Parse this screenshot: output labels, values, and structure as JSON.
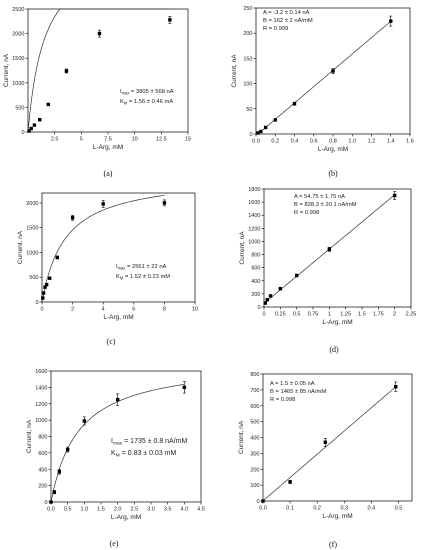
{
  "chart_data": [
    {
      "type": "scatter",
      "panel": "a",
      "caption": "(a)",
      "xlabel": "L-Arg, mM",
      "ylabel": "Current, nA",
      "xlim": [
        0,
        15
      ],
      "ylim": [
        0,
        2500
      ],
      "xticks": [
        2.5,
        5,
        7.5,
        10,
        12.5,
        15
      ],
      "xtick_labels": [
        "2.5",
        "5",
        "7.5",
        "10",
        "12.5",
        "15"
      ],
      "yticks": [
        0,
        500,
        1000,
        1500,
        2000,
        2500
      ],
      "ytick_labels": [
        "0",
        "500",
        "1000",
        "1500",
        "2000",
        "2500"
      ],
      "x": [
        0.1,
        0.3,
        0.6,
        1.1,
        1.9,
        3.6,
        6.7,
        13.3
      ],
      "y": [
        20,
        70,
        140,
        250,
        560,
        1240,
        2000,
        2280
      ],
      "yerr": [
        10,
        10,
        15,
        20,
        20,
        40,
        70,
        70
      ],
      "fit": {
        "model": "michaelis-menten",
        "Imax": 3805,
        "Km": 1.56
      },
      "annotations": [
        {
          "main": "I",
          "sub": "max",
          "rest": " = 3805 ± 568 nA"
        },
        {
          "main": "K",
          "sub": "M",
          "rest": " = 1.56 ± 0.46 mA"
        }
      ]
    },
    {
      "type": "scatter",
      "panel": "b",
      "caption": "(b)",
      "xlabel": "L-Arg, mM",
      "ylabel": "Current, nA",
      "xlim": [
        0,
        1.6
      ],
      "ylim": [
        0,
        250
      ],
      "xticks": [
        0.0,
        0.2,
        0.4,
        0.6,
        0.8,
        1.0,
        1.2,
        1.4,
        1.6
      ],
      "xtick_labels": [
        "0.0",
        "0.2",
        "0.4",
        "0.6",
        "0.8",
        "1.0",
        "1.2",
        "1.4",
        "1.6"
      ],
      "yticks": [
        0,
        50,
        100,
        150,
        200,
        250
      ],
      "ytick_labels": [
        "0",
        "50",
        "100",
        "150",
        "200",
        "250"
      ],
      "x": [
        0.02,
        0.05,
        0.1,
        0.2,
        0.4,
        0.8,
        1.4
      ],
      "y": [
        2,
        5,
        13,
        28,
        60,
        125,
        224
      ],
      "yerr": [
        2,
        2,
        2,
        2,
        3,
        5,
        10
      ],
      "fit": {
        "model": "linear",
        "A": -3.2,
        "B": 162
      },
      "annotations": [
        {
          "text": "A = -3.2 ± 0.14 nA"
        },
        {
          "text": "B = 162 ± 2 nA/mM"
        },
        {
          "text": "R = 0.999"
        }
      ]
    },
    {
      "type": "scatter",
      "panel": "c",
      "caption": "(c)",
      "xlabel": "L-Arg, mM",
      "ylabel": "Current, nA",
      "xlim": [
        0,
        10
      ],
      "ylim": [
        0,
        2200
      ],
      "xticks": [
        0,
        2,
        4,
        6,
        8,
        10
      ],
      "xtick_labels": [
        "0",
        "2",
        "4",
        "6",
        "8",
        "10"
      ],
      "yticks": [
        0,
        500,
        1000,
        1500,
        2000
      ],
      "ytick_labels": [
        "0",
        "500",
        "1000",
        "1500",
        "2000"
      ],
      "x": [
        0.05,
        0.1,
        0.2,
        0.3,
        0.5,
        1.0,
        2.0,
        4.0,
        8.0
      ],
      "y": [
        80,
        180,
        300,
        350,
        480,
        900,
        1700,
        1980,
        2000
      ],
      "yerr": [
        10,
        10,
        15,
        15,
        20,
        30,
        50,
        70,
        60
      ],
      "fit": {
        "model": "michaelis-menten",
        "Imax": 2561,
        "Km": 1.52
      },
      "annotations": [
        {
          "main": "I",
          "sub": "max",
          "rest": " = 2561 ± 22 nA"
        },
        {
          "main": "K",
          "sub": "M",
          "rest": " = 1.52 ± 0.23 mM"
        }
      ]
    },
    {
      "type": "scatter",
      "panel": "d",
      "caption": "(d)",
      "xlabel": "L-Arg, mM",
      "ylabel": "Current, nA",
      "xlim": [
        0,
        2.25
      ],
      "ylim": [
        0,
        1800
      ],
      "xticks": [
        0,
        0.25,
        0.5,
        0.75,
        1.0,
        1.25,
        1.5,
        1.75,
        2.0,
        2.25
      ],
      "xtick_labels": [
        "0",
        "0.25",
        "0.5",
        "0.75",
        "1",
        "1.25",
        "1.5",
        "1.75",
        "2",
        "2.25"
      ],
      "yticks": [
        0,
        200,
        400,
        600,
        800,
        1000,
        1200,
        1400,
        1600,
        1800
      ],
      "ytick_labels": [
        "0",
        "200",
        "400",
        "600",
        "800",
        "1000",
        "1200",
        "1400",
        "1600",
        "1800"
      ],
      "x": [
        0.02,
        0.05,
        0.1,
        0.25,
        0.5,
        1.0,
        2.0
      ],
      "y": [
        60,
        110,
        170,
        280,
        480,
        880,
        1700
      ],
      "yerr": [
        10,
        10,
        10,
        15,
        20,
        30,
        60
      ],
      "fit": {
        "model": "linear",
        "A": 54.75,
        "B": 828.3
      },
      "annotations": [
        {
          "text": "A = 54.75 ± 1.75 nA"
        },
        {
          "text": "B = 828.3 ± 20.1 nA/mM"
        },
        {
          "text": "R = 0.998"
        }
      ]
    },
    {
      "type": "scatter",
      "panel": "e",
      "caption": "(e)",
      "xlabel": "L-Arg, mM",
      "ylabel": "Current, nA",
      "xlim": [
        0,
        4.5
      ],
      "ylim": [
        0,
        1600
      ],
      "xticks": [
        0.0,
        0.5,
        1.0,
        1.5,
        2.0,
        2.5,
        3.0,
        3.5,
        4.0,
        4.5
      ],
      "xtick_labels": [
        "0.0",
        "0.5",
        "1.0",
        "1.5",
        "2.0",
        "2.5",
        "3.0",
        "3.5",
        "4.0",
        "4.5"
      ],
      "yticks": [
        0,
        200,
        400,
        600,
        800,
        1000,
        1200,
        1400,
        1600
      ],
      "ytick_labels": [
        "0",
        "200",
        "400",
        "600",
        "800",
        "1000",
        "1200",
        "1400",
        "1600"
      ],
      "x": [
        0.0,
        0.1,
        0.25,
        0.5,
        1.0,
        2.0,
        4.0
      ],
      "y": [
        0,
        120,
        370,
        640,
        990,
        1250,
        1400
      ],
      "yerr": [
        10,
        20,
        30,
        30,
        50,
        70,
        70
      ],
      "fit": {
        "model": "michaelis-menten",
        "Imax": 1735,
        "Km": 0.83
      },
      "annotations": [
        {
          "main": "I",
          "sub": "max",
          "rest": " = 1735 ± 0.8 nA/mM"
        },
        {
          "main": "K",
          "sub": "M",
          "rest": " = 0.83 ± 0.03 mM"
        }
      ]
    },
    {
      "type": "scatter",
      "panel": "f",
      "caption": "(f)",
      "xlabel": "L-Arg, mM",
      "ylabel": "Current, nA",
      "xlim": [
        0,
        0.55
      ],
      "ylim": [
        0,
        800
      ],
      "xticks": [
        0.0,
        0.1,
        0.2,
        0.3,
        0.4,
        0.5
      ],
      "xtick_labels": [
        "0.0",
        "0.1",
        "0.2",
        "0.3",
        "0.4",
        "0.5"
      ],
      "yticks": [
        0,
        100,
        200,
        300,
        400,
        500,
        600,
        700,
        800
      ],
      "ytick_labels": [
        "0",
        "100",
        "200",
        "300",
        "400",
        "500",
        "600",
        "700",
        "800"
      ],
      "x": [
        0.0,
        0.1,
        0.23,
        0.49
      ],
      "y": [
        0,
        120,
        370,
        720
      ],
      "yerr": [
        5,
        10,
        25,
        30
      ],
      "fit": {
        "model": "linear",
        "A": 1.5,
        "B": 1465
      },
      "annotations": [
        {
          "text": "A = 1.5 ± 0.05 nA"
        },
        {
          "text": "B = 1465 ± 85 nA/mM"
        },
        {
          "text": "R = 0.998"
        }
      ]
    }
  ]
}
